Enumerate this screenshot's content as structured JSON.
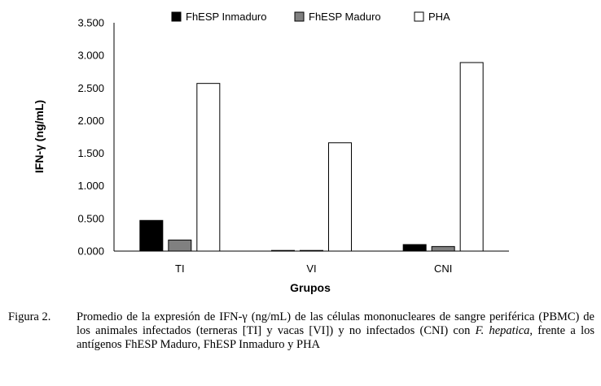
{
  "chart_data": {
    "type": "bar",
    "categories": [
      "TI",
      "VI",
      "CNI"
    ],
    "series": [
      {
        "name": "FhESP Inmaduro",
        "color": "#000000",
        "values": [
          0.47,
          0.01,
          0.1
        ]
      },
      {
        "name": "FhESP Maduro",
        "color": "#808080",
        "values": [
          0.17,
          0.005,
          0.07
        ]
      },
      {
        "name": "PHA",
        "color": "#ffffff",
        "values": [
          2.57,
          1.66,
          2.89
        ]
      }
    ],
    "xlabel": "Grupos",
    "ylabel": "IFN-γ (ng/mL)",
    "ylim": [
      0,
      3.5
    ],
    "yticks": [
      "0.000",
      "0.500",
      "1.000",
      "1.500",
      "2.000",
      "2.500",
      "3.000",
      "3.500"
    ],
    "legend_position": "top",
    "grid": false
  },
  "caption": {
    "label": "Figura 2.",
    "text_before": "Promedio de la expresión de IFN-γ (ng/mL) de las células mononucleares de sangre periférica (PBMC) de los animales infectados (terneras [TI] y vacas [VI]) y no infectados (CNI) con ",
    "italic": "F. hepatica",
    "text_after": ", frente a los antígenos FhESP Maduro, FhESP Inmaduro y PHA"
  }
}
